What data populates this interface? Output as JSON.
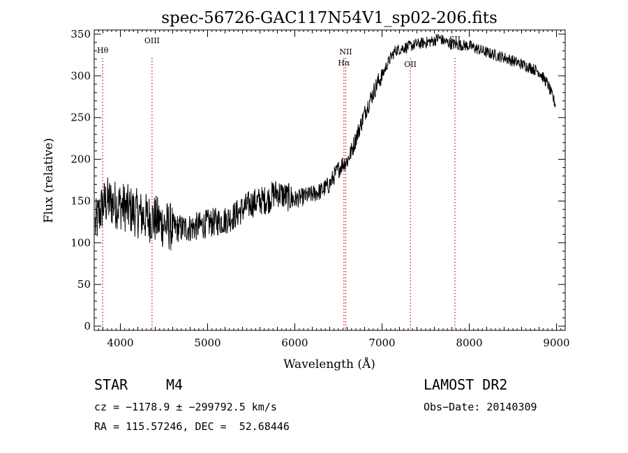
{
  "chart_data": {
    "type": "line",
    "title": "spec-56726-GAC117N54V1_sp02-206.fits",
    "xlabel": "Wavelength (Å)",
    "ylabel": "Flux (relative)",
    "xlim": [
      3700,
      9100
    ],
    "ylim": [
      -5,
      355
    ],
    "xticks": [
      4000,
      5000,
      6000,
      7000,
      8000,
      9000
    ],
    "yticks": [
      0,
      50,
      100,
      150,
      200,
      250,
      300,
      350
    ],
    "grid": false,
    "series": [
      {
        "color": "#000000",
        "x": [
          3710,
          3760,
          3800,
          3850,
          3900,
          3950,
          4000,
          4100,
          4200,
          4300,
          4400,
          4500,
          4600,
          4700,
          4800,
          4900,
          5000,
          5100,
          5200,
          5300,
          5400,
          5500,
          5600,
          5700,
          5750,
          5800,
          5900,
          6000,
          6100,
          6200,
          6300,
          6400,
          6450,
          6500,
          6550,
          6600,
          6650,
          6700,
          6750,
          6800,
          6850,
          6900,
          6950,
          7000,
          7050,
          7100,
          7150,
          7200,
          7300,
          7400,
          7500,
          7600,
          7650,
          7700,
          7800,
          7900,
          8000,
          8100,
          8200,
          8300,
          8400,
          8500,
          8600,
          8700,
          8800,
          8900,
          8990
        ],
        "y": [
          120,
          135,
          145,
          150,
          148,
          146,
          145,
          140,
          135,
          130,
          128,
          122,
          118,
          117,
          118,
          120,
          123,
          125,
          127,
          132,
          140,
          147,
          150,
          152,
          158,
          160,
          155,
          152,
          155,
          158,
          162,
          170,
          180,
          188,
          195,
          198,
          210,
          225,
          240,
          255,
          268,
          280,
          292,
          300,
          312,
          322,
          330,
          332,
          335,
          338,
          340,
          342,
          346,
          342,
          338,
          337,
          336,
          332,
          328,
          325,
          322,
          318,
          314,
          310,
          305,
          290,
          265
        ]
      }
    ],
    "annotations": [
      {
        "label": "Hθ",
        "x": 3797
      },
      {
        "label": "OIII",
        "x": 4363
      },
      {
        "label": "NII",
        "x": 6584
      },
      {
        "label": "Hα",
        "x": 6563
      },
      {
        "label": "OII",
        "x": 7325
      },
      {
        "label": "SII",
        "x": 7836
      }
    ],
    "line_color": "#cc0000"
  },
  "info": {
    "class_label": "STAR",
    "subclass": "M4",
    "survey": "LAMOST DR2",
    "cz": "cz = −1178.9 ± −299792.5 km/s",
    "obs_date": "Obs−Date: 20140309",
    "radec": "RA = 115.57246, DEC =  52.68446"
  }
}
